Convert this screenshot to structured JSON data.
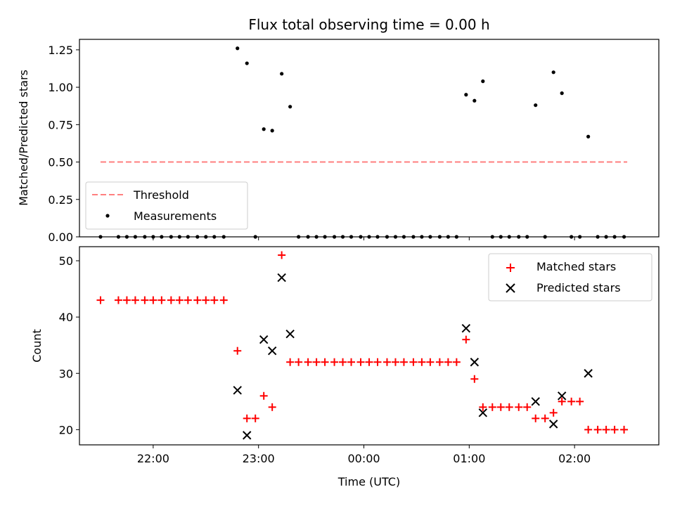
{
  "chart_data": [
    {
      "type": "scatter",
      "title": "Flux total observing time = 0.00 h",
      "xlabel": "",
      "ylabel": "Matched/Predicted stars",
      "ylim": [
        0,
        1.32
      ],
      "yticks": [
        "0.00",
        "0.25",
        "0.50",
        "0.75",
        "1.00",
        "1.25"
      ],
      "ytick_values": [
        0,
        0.25,
        0.5,
        0.75,
        1.0,
        1.25
      ],
      "x_is_time": true,
      "xlim_hours": [
        21.3,
        26.8
      ],
      "xtick_hours": [
        22,
        23,
        24,
        25,
        26
      ],
      "legend_position": "lower-left",
      "threshold": {
        "name": "Threshold",
        "value": 0.5,
        "x_range_hours": [
          21.5,
          26.5
        ],
        "color": "#ff7f7f"
      },
      "measurements": {
        "name": "Measurements",
        "color": "#000000",
        "points": [
          {
            "t": 21.5,
            "v": 0.0
          },
          {
            "t": 21.67,
            "v": 0.0
          },
          {
            "t": 21.75,
            "v": 0.0
          },
          {
            "t": 21.83,
            "v": 0.0
          },
          {
            "t": 21.92,
            "v": 0.0
          },
          {
            "t": 22.0,
            "v": 0.0
          },
          {
            "t": 22.08,
            "v": 0.0
          },
          {
            "t": 22.17,
            "v": 0.0
          },
          {
            "t": 22.25,
            "v": 0.0
          },
          {
            "t": 22.33,
            "v": 0.0
          },
          {
            "t": 22.42,
            "v": 0.0
          },
          {
            "t": 22.5,
            "v": 0.0
          },
          {
            "t": 22.58,
            "v": 0.0
          },
          {
            "t": 22.67,
            "v": 0.0
          },
          {
            "t": 22.8,
            "v": 1.26
          },
          {
            "t": 22.89,
            "v": 1.16
          },
          {
            "t": 22.97,
            "v": 0.0
          },
          {
            "t": 23.05,
            "v": 0.72
          },
          {
            "t": 23.13,
            "v": 0.71
          },
          {
            "t": 23.22,
            "v": 1.09
          },
          {
            "t": 23.3,
            "v": 0.87
          },
          {
            "t": 23.38,
            "v": 0.0
          },
          {
            "t": 23.47,
            "v": 0.0
          },
          {
            "t": 23.55,
            "v": 0.0
          },
          {
            "t": 23.63,
            "v": 0.0
          },
          {
            "t": 23.72,
            "v": 0.0
          },
          {
            "t": 23.8,
            "v": 0.0
          },
          {
            "t": 23.88,
            "v": 0.0
          },
          {
            "t": 23.97,
            "v": 0.0
          },
          {
            "t": 24.05,
            "v": 0.0
          },
          {
            "t": 24.13,
            "v": 0.0
          },
          {
            "t": 24.22,
            "v": 0.0
          },
          {
            "t": 24.3,
            "v": 0.0
          },
          {
            "t": 24.38,
            "v": 0.0
          },
          {
            "t": 24.47,
            "v": 0.0
          },
          {
            "t": 24.55,
            "v": 0.0
          },
          {
            "t": 24.63,
            "v": 0.0
          },
          {
            "t": 24.72,
            "v": 0.0
          },
          {
            "t": 24.8,
            "v": 0.0
          },
          {
            "t": 24.88,
            "v": 0.0
          },
          {
            "t": 24.97,
            "v": 0.95
          },
          {
            "t": 25.05,
            "v": 0.91
          },
          {
            "t": 25.13,
            "v": 1.04
          },
          {
            "t": 25.22,
            "v": 0.0
          },
          {
            "t": 25.3,
            "v": 0.0
          },
          {
            "t": 25.38,
            "v": 0.0
          },
          {
            "t": 25.47,
            "v": 0.0
          },
          {
            "t": 25.55,
            "v": 0.0
          },
          {
            "t": 25.63,
            "v": 0.88
          },
          {
            "t": 25.72,
            "v": 0.0
          },
          {
            "t": 25.8,
            "v": 1.1
          },
          {
            "t": 25.88,
            "v": 0.96
          },
          {
            "t": 25.97,
            "v": 0.0
          },
          {
            "t": 26.05,
            "v": 0.0
          },
          {
            "t": 26.13,
            "v": 0.67
          },
          {
            "t": 26.22,
            "v": 0.0
          },
          {
            "t": 26.3,
            "v": 0.0
          },
          {
            "t": 26.38,
            "v": 0.0
          },
          {
            "t": 26.47,
            "v": 0.0
          }
        ]
      }
    },
    {
      "type": "scatter",
      "title": "",
      "xlabel": "Time (UTC)",
      "ylabel": "Count",
      "ylim": [
        17.3,
        52.5
      ],
      "yticks": [
        "20",
        "30",
        "40",
        "50"
      ],
      "ytick_values": [
        20,
        30,
        40,
        50
      ],
      "x_is_time": true,
      "xlim_hours": [
        21.3,
        26.8
      ],
      "xtick_hours": [
        22,
        23,
        24,
        25,
        26
      ],
      "xticks": [
        "22:00",
        "23:00",
        "00:00",
        "01:00",
        "02:00"
      ],
      "legend_position": "upper-right",
      "series": [
        {
          "name": "Matched stars",
          "marker": "plus",
          "color": "#ff0000",
          "points": [
            {
              "t": 21.5,
              "v": 43
            },
            {
              "t": 21.67,
              "v": 43
            },
            {
              "t": 21.75,
              "v": 43
            },
            {
              "t": 21.83,
              "v": 43
            },
            {
              "t": 21.92,
              "v": 43
            },
            {
              "t": 22.0,
              "v": 43
            },
            {
              "t": 22.08,
              "v": 43
            },
            {
              "t": 22.17,
              "v": 43
            },
            {
              "t": 22.25,
              "v": 43
            },
            {
              "t": 22.33,
              "v": 43
            },
            {
              "t": 22.42,
              "v": 43
            },
            {
              "t": 22.5,
              "v": 43
            },
            {
              "t": 22.58,
              "v": 43
            },
            {
              "t": 22.67,
              "v": 43
            },
            {
              "t": 22.8,
              "v": 34
            },
            {
              "t": 22.89,
              "v": 22
            },
            {
              "t": 22.97,
              "v": 22
            },
            {
              "t": 23.05,
              "v": 26
            },
            {
              "t": 23.13,
              "v": 24
            },
            {
              "t": 23.22,
              "v": 51
            },
            {
              "t": 23.3,
              "v": 32
            },
            {
              "t": 23.38,
              "v": 32
            },
            {
              "t": 23.47,
              "v": 32
            },
            {
              "t": 23.55,
              "v": 32
            },
            {
              "t": 23.63,
              "v": 32
            },
            {
              "t": 23.72,
              "v": 32
            },
            {
              "t": 23.8,
              "v": 32
            },
            {
              "t": 23.88,
              "v": 32
            },
            {
              "t": 23.97,
              "v": 32
            },
            {
              "t": 24.05,
              "v": 32
            },
            {
              "t": 24.13,
              "v": 32
            },
            {
              "t": 24.22,
              "v": 32
            },
            {
              "t": 24.3,
              "v": 32
            },
            {
              "t": 24.38,
              "v": 32
            },
            {
              "t": 24.47,
              "v": 32
            },
            {
              "t": 24.55,
              "v": 32
            },
            {
              "t": 24.63,
              "v": 32
            },
            {
              "t": 24.72,
              "v": 32
            },
            {
              "t": 24.8,
              "v": 32
            },
            {
              "t": 24.88,
              "v": 32
            },
            {
              "t": 24.97,
              "v": 36
            },
            {
              "t": 25.05,
              "v": 29
            },
            {
              "t": 25.13,
              "v": 24
            },
            {
              "t": 25.22,
              "v": 24
            },
            {
              "t": 25.3,
              "v": 24
            },
            {
              "t": 25.38,
              "v": 24
            },
            {
              "t": 25.47,
              "v": 24
            },
            {
              "t": 25.55,
              "v": 24
            },
            {
              "t": 25.63,
              "v": 22
            },
            {
              "t": 25.72,
              "v": 22
            },
            {
              "t": 25.8,
              "v": 23
            },
            {
              "t": 25.88,
              "v": 25
            },
            {
              "t": 25.97,
              "v": 25
            },
            {
              "t": 26.05,
              "v": 25
            },
            {
              "t": 26.13,
              "v": 20
            },
            {
              "t": 26.22,
              "v": 20
            },
            {
              "t": 26.3,
              "v": 20
            },
            {
              "t": 26.38,
              "v": 20
            },
            {
              "t": 26.47,
              "v": 20
            }
          ]
        },
        {
          "name": "Predicted stars",
          "marker": "x",
          "color": "#000000",
          "points": [
            {
              "t": 22.8,
              "v": 27
            },
            {
              "t": 22.89,
              "v": 19
            },
            {
              "t": 23.05,
              "v": 36
            },
            {
              "t": 23.13,
              "v": 34
            },
            {
              "t": 23.22,
              "v": 47
            },
            {
              "t": 23.3,
              "v": 37
            },
            {
              "t": 24.97,
              "v": 38
            },
            {
              "t": 25.05,
              "v": 32
            },
            {
              "t": 25.13,
              "v": 23
            },
            {
              "t": 25.63,
              "v": 25
            },
            {
              "t": 25.8,
              "v": 21
            },
            {
              "t": 25.88,
              "v": 26
            },
            {
              "t": 26.13,
              "v": 30
            }
          ]
        }
      ]
    }
  ]
}
